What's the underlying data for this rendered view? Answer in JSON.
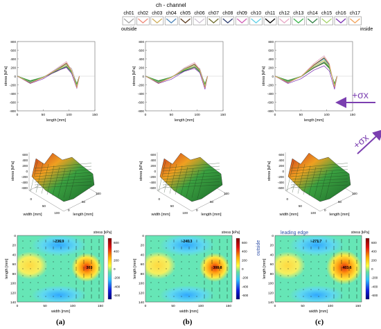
{
  "legend": {
    "title": "ch - channel",
    "channels": [
      {
        "name": "ch01",
        "color": "#a6a6a6"
      },
      {
        "name": "ch02",
        "color": "#f08a7a"
      },
      {
        "name": "ch03",
        "color": "#cfae5a"
      },
      {
        "name": "ch04",
        "color": "#4a83b8"
      },
      {
        "name": "ch05",
        "color": "#5a3a1e"
      },
      {
        "name": "ch06",
        "color": "#cfc3d3"
      },
      {
        "name": "ch07",
        "color": "#6e6b2a"
      },
      {
        "name": "ch08",
        "color": "#2b3b6e"
      },
      {
        "name": "ch09",
        "color": "#d15fb5"
      },
      {
        "name": "ch10",
        "color": "#5fd0e6"
      },
      {
        "name": "ch11",
        "color": "#000000"
      },
      {
        "name": "ch12",
        "color": "#e7a8c5"
      },
      {
        "name": "ch13",
        "color": "#39b54a"
      },
      {
        "name": "ch14",
        "color": "#2e7f42"
      },
      {
        "name": "ch15",
        "color": "#a5d36a"
      },
      {
        "name": "ch16",
        "color": "#7a2fb2"
      },
      {
        "name": "ch17",
        "color": "#f2a35a"
      }
    ],
    "left_note": "outside",
    "right_note": "inside"
  },
  "panel_labels": [
    "(a)",
    "(b)",
    "(c)"
  ],
  "force_label": "+σx",
  "force_color": "#7b3fb0",
  "line_charts": {
    "ylabel": "stress [kPa]",
    "xlabel": "length [mm]",
    "yticks": [
      "800",
      "600",
      "400",
      "200",
      "0",
      "-200",
      "-400",
      "-600",
      "-800"
    ],
    "xticks": [
      "0",
      "50",
      "100",
      "150"
    ]
  },
  "surface_charts": {
    "zlabel": "stress [kPa]",
    "xlabel": "width [mm]",
    "ylabel": "length [mm]",
    "zticks": [
      "600",
      "400",
      "200",
      "0",
      "-200",
      "-400",
      "-600"
    ],
    "wticks": [
      "0",
      "50",
      "100"
    ],
    "lticks": [
      "0",
      "50",
      "100"
    ]
  },
  "contour_charts": {
    "colorbar_title": "stress [kPa]",
    "colorbar_ticks": [
      "600",
      "400",
      "200",
      "0",
      "-200",
      "-400",
      "-600"
    ],
    "xlabel": "width [mm]",
    "ylabel": "length [mm]",
    "xticks": [
      "0",
      "50",
      "100",
      "150"
    ],
    "yticks": [
      "0",
      "20",
      "40",
      "60",
      "80",
      "100",
      "120",
      "140"
    ],
    "leading_edge": "leading edge",
    "outside": "outside",
    "min_values": [
      "-236.9",
      "-240.3",
      "-271.7"
    ],
    "max_values": [
      "303",
      "308.8",
      "403.6"
    ]
  },
  "chart_data": [
    {
      "type": "line",
      "panel": "a",
      "title": "",
      "xlabel": "length [mm]",
      "ylabel": "stress [kPa]",
      "xlim": [
        0,
        150
      ],
      "ylim": [
        -800,
        800
      ],
      "series": [
        {
          "name": "ch01",
          "x": [
            0,
            25,
            50,
            75,
            95,
            105,
            115,
            120
          ],
          "y": [
            0,
            -130,
            -40,
            160,
            260,
            180,
            -180,
            0
          ]
        },
        {
          "name": "ch09",
          "x": [
            0,
            25,
            50,
            75,
            95,
            105,
            115,
            120
          ],
          "y": [
            0,
            -150,
            -30,
            150,
            300,
            120,
            -250,
            0
          ]
        },
        {
          "name": "ch16",
          "x": [
            0,
            25,
            50,
            75,
            95,
            105,
            115,
            120
          ],
          "y": [
            0,
            -170,
            -60,
            120,
            200,
            60,
            -280,
            0
          ]
        }
      ]
    },
    {
      "type": "line",
      "panel": "b",
      "title": "",
      "xlabel": "length [mm]",
      "ylabel": "stress [kPa]",
      "xlim": [
        0,
        150
      ],
      "ylim": [
        -800,
        800
      ],
      "series": [
        {
          "name": "ch01",
          "x": [
            0,
            25,
            50,
            75,
            95,
            105,
            115,
            120
          ],
          "y": [
            0,
            -130,
            -20,
            160,
            250,
            180,
            -200,
            0
          ]
        },
        {
          "name": "ch09",
          "x": [
            0,
            25,
            50,
            75,
            95,
            105,
            115,
            120
          ],
          "y": [
            0,
            -150,
            -30,
            170,
            280,
            140,
            -250,
            0
          ]
        },
        {
          "name": "ch16",
          "x": [
            0,
            25,
            50,
            75,
            95,
            105,
            115,
            120
          ],
          "y": [
            0,
            -170,
            -70,
            110,
            180,
            80,
            -300,
            0
          ]
        }
      ]
    },
    {
      "type": "line",
      "panel": "c",
      "title": "",
      "xlabel": "length [mm]",
      "ylabel": "stress [kPa]",
      "xlim": [
        0,
        150
      ],
      "ylim": [
        -800,
        800
      ],
      "series": [
        {
          "name": "ch01",
          "x": [
            0,
            25,
            50,
            75,
            95,
            105,
            115,
            120
          ],
          "y": [
            0,
            -120,
            -20,
            200,
            330,
            220,
            -200,
            0
          ]
        },
        {
          "name": "ch09",
          "x": [
            0,
            25,
            50,
            75,
            95,
            105,
            115,
            120
          ],
          "y": [
            0,
            -140,
            -10,
            260,
            420,
            260,
            -240,
            0
          ]
        },
        {
          "name": "ch16",
          "x": [
            0,
            25,
            50,
            75,
            95,
            105,
            115,
            120
          ],
          "y": [
            0,
            -170,
            -60,
            140,
            240,
            120,
            -300,
            0
          ]
        }
      ]
    }
  ]
}
